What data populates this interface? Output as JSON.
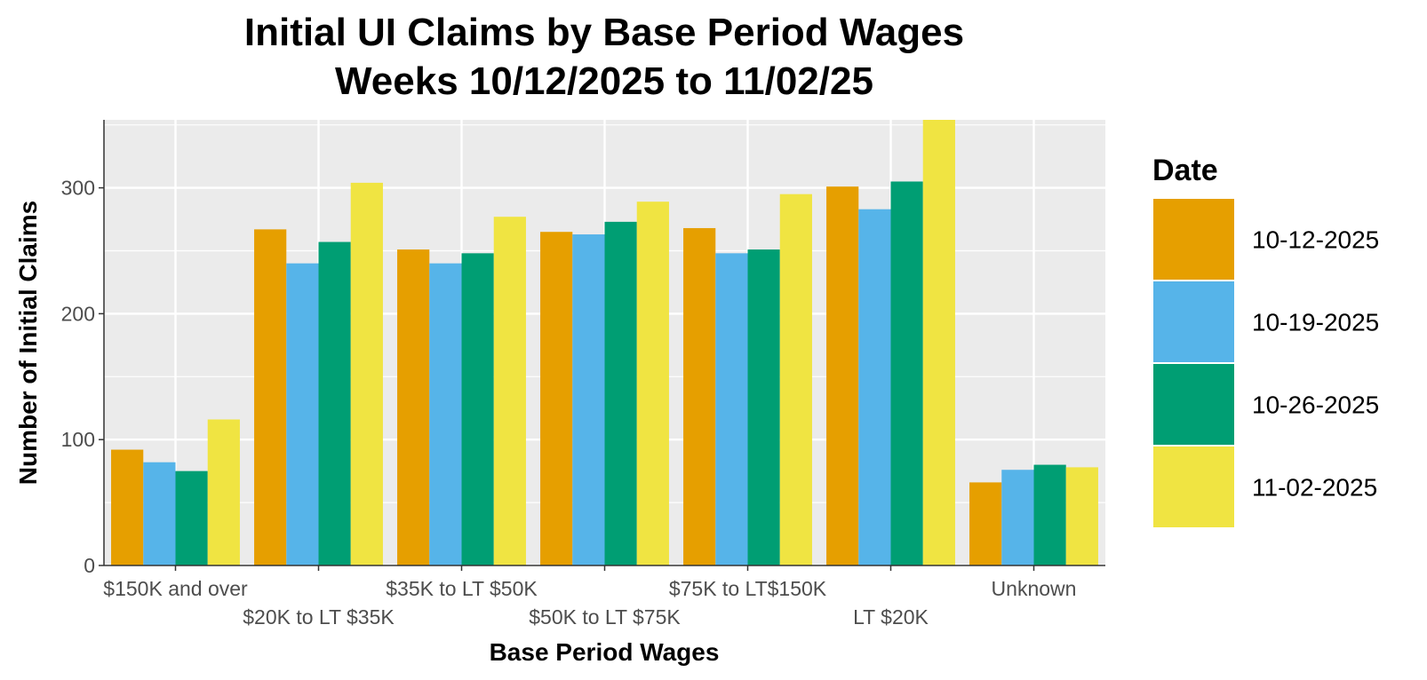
{
  "chart_data": {
    "type": "bar",
    "title_line1": "Initial UI Claims by Base Period Wages",
    "title_line2": "Weeks 10/12/2025 to 11/02/25",
    "xlabel": "Base Period Wages",
    "ylabel": "Number of Initial Claims",
    "ylim": [
      0,
      354
    ],
    "yticks": [
      0,
      100,
      200,
      300
    ],
    "ytick_labels": [
      "0",
      "100",
      "200",
      "300"
    ],
    "grid": true,
    "legend": {
      "title": "Date",
      "position": "right"
    },
    "categories": [
      "$150K and over",
      "$20K to LT $35K",
      "$35K to LT $50K",
      "$50K to LT $75K",
      "$75K to LT$150K",
      "LT $20K",
      "Unknown"
    ],
    "series": [
      {
        "name": "10-12-2025",
        "color": "#E69F00",
        "values": [
          92,
          267,
          251,
          265,
          268,
          301,
          66
        ]
      },
      {
        "name": "10-19-2025",
        "color": "#56B4E9",
        "values": [
          82,
          240,
          240,
          263,
          248,
          283,
          76
        ]
      },
      {
        "name": "10-26-2025",
        "color": "#009E73",
        "values": [
          75,
          257,
          248,
          273,
          251,
          305,
          80
        ]
      },
      {
        "name": "11-02-2025",
        "color": "#F0E442",
        "values": [
          116,
          304,
          277,
          289,
          295,
          355,
          78
        ]
      }
    ]
  }
}
